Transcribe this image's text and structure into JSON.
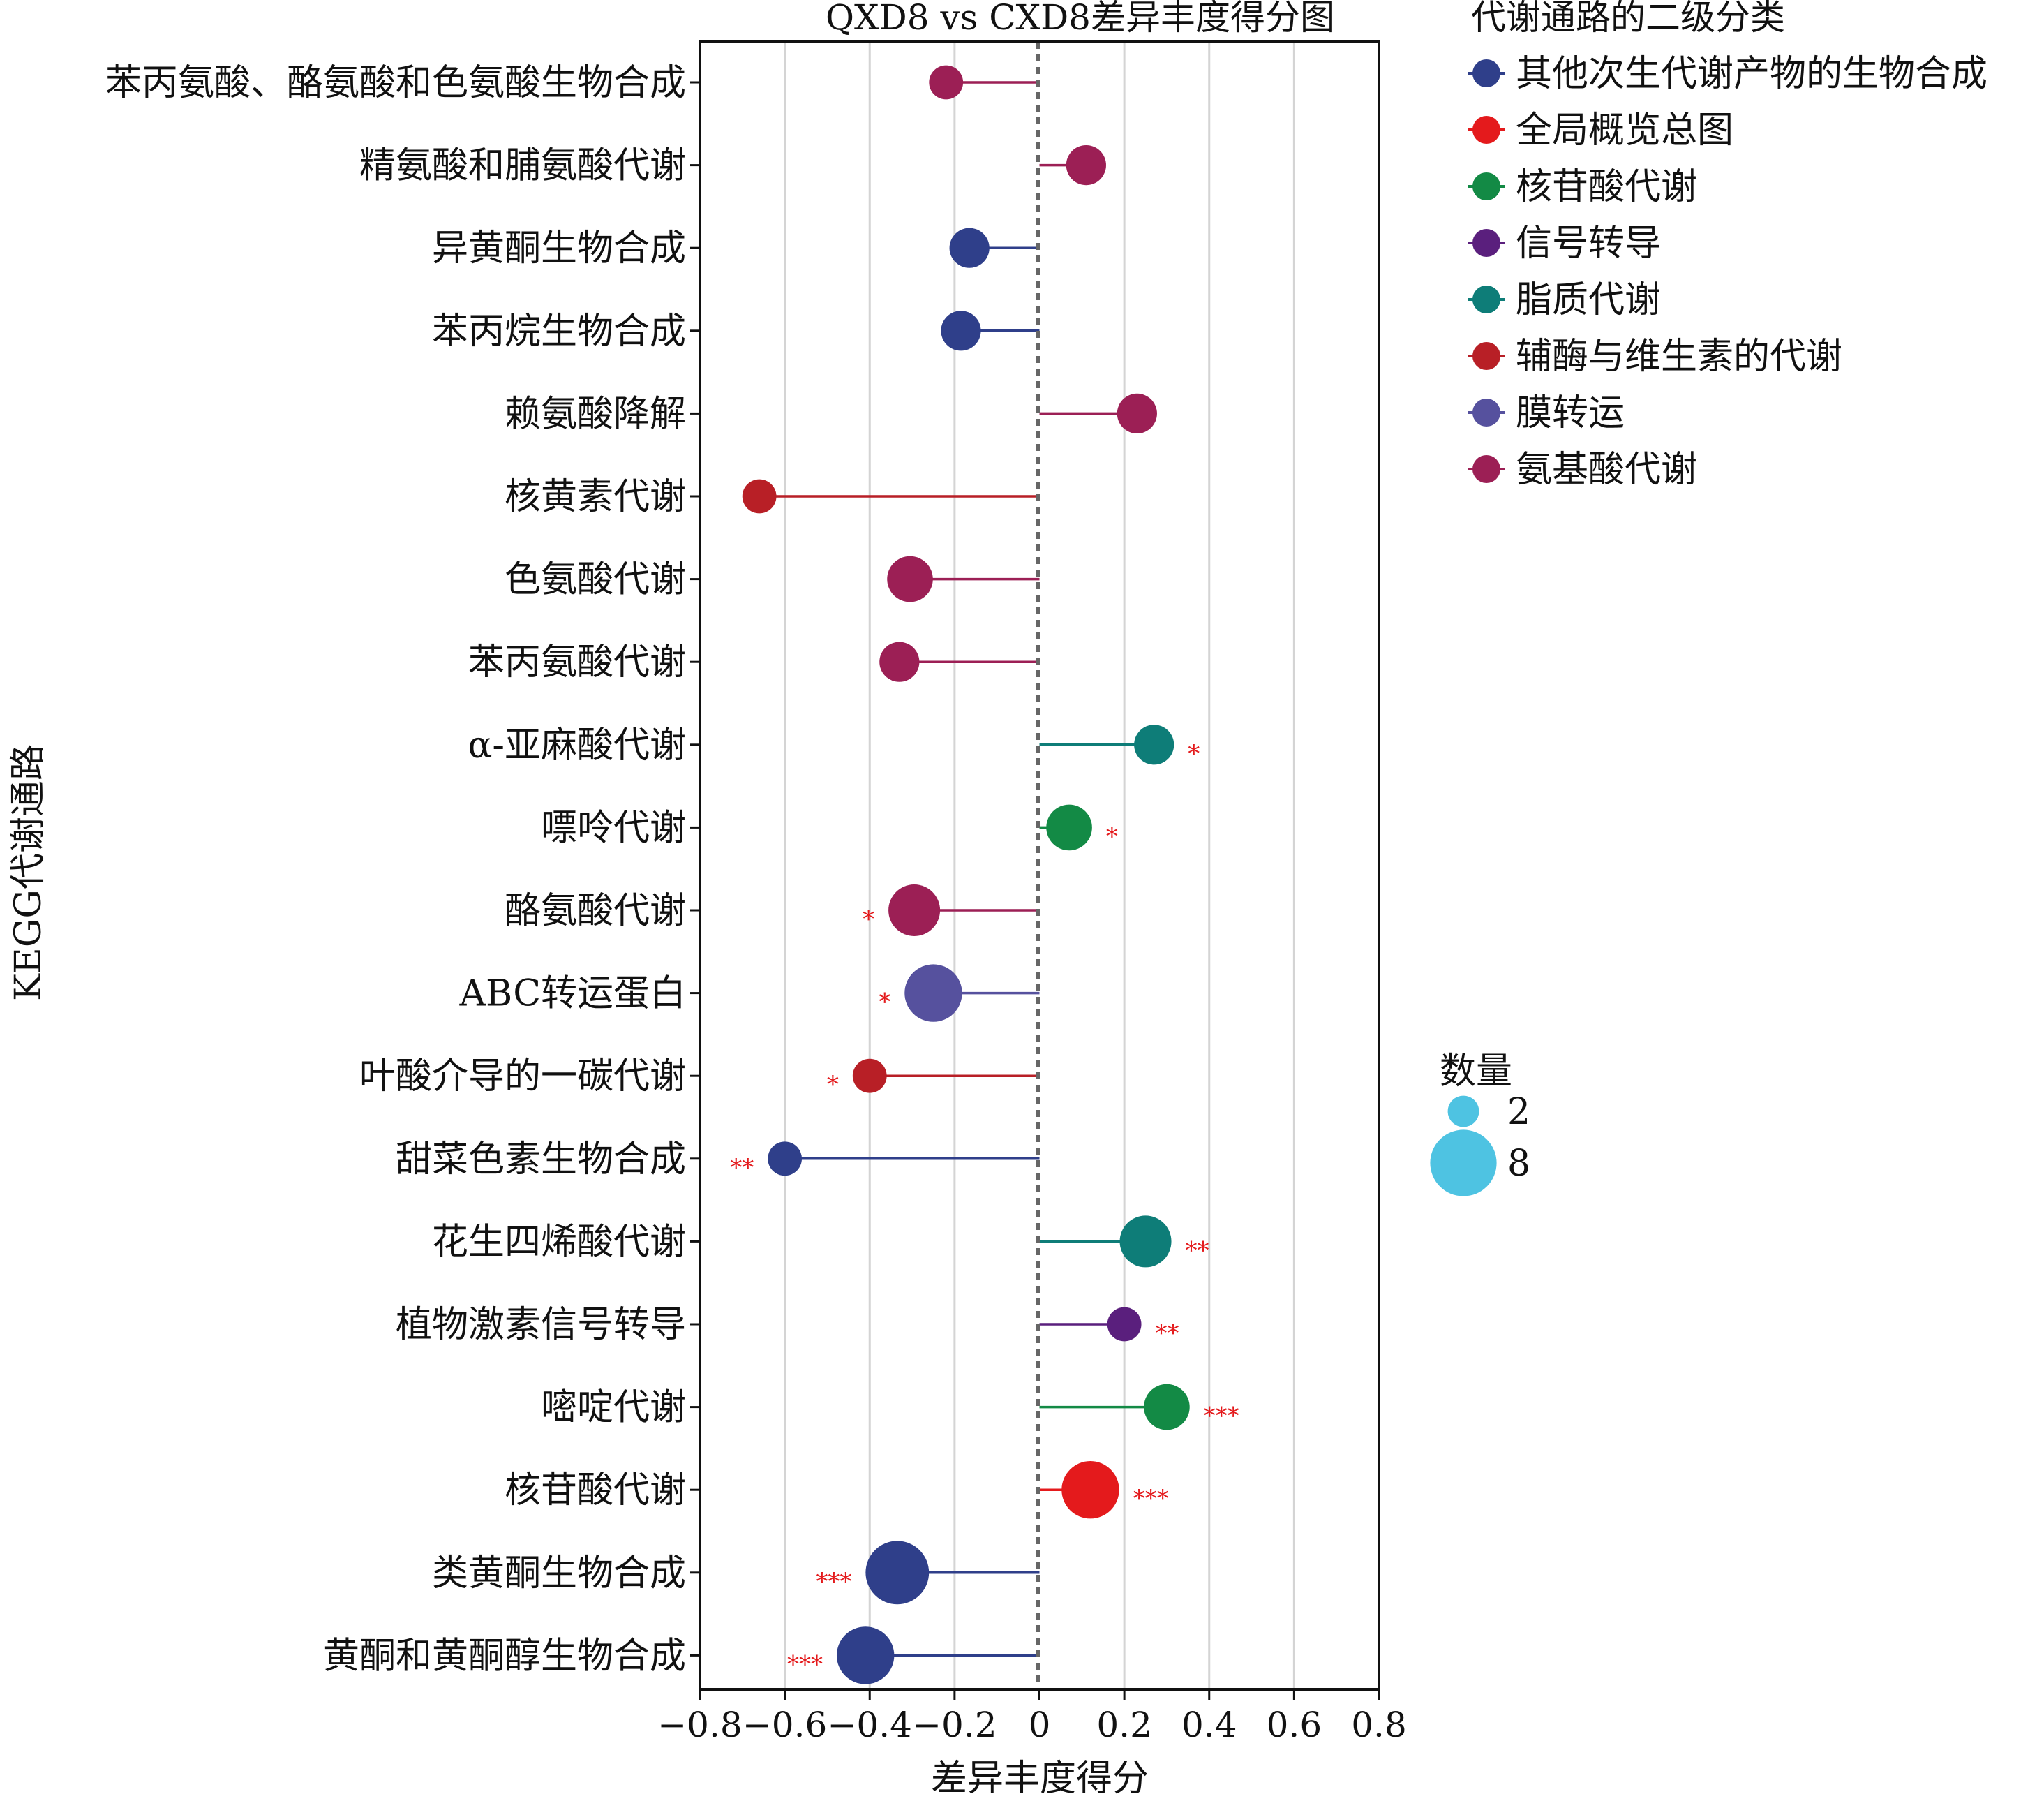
{
  "chart_data": {
    "type": "lollipop",
    "title": "QXD8 vs CXD8差异丰度得分图",
    "xlabel": "差异丰度得分",
    "ylabel": "KEGG代谢通路",
    "xlim": [
      -0.8,
      0.8
    ],
    "xticks": [
      "−0.8",
      "−0.6",
      "−0.4",
      "−0.2",
      "0",
      "0.2",
      "0.4",
      "0.6",
      "0.8"
    ],
    "xtick_values": [
      -0.8,
      -0.6,
      -0.4,
      -0.2,
      0,
      0.2,
      0.4,
      0.6,
      0.8
    ],
    "grid": "vertical",
    "legend_class": {
      "title": "代谢通路的二级分类",
      "items": [
        {
          "label": "其他次生代谢产物的生物合成",
          "color": "#2f3f8a"
        },
        {
          "label": "全局概览总图",
          "color": "#e41a1c"
        },
        {
          "label": "核苷酸代谢",
          "color": "#138a45"
        },
        {
          "label": "信号转导",
          "color": "#5a1f7d"
        },
        {
          "label": "脂质代谢",
          "color": "#0e7d78"
        },
        {
          "label": "辅酶与维生素的代谢",
          "color": "#b81f26"
        },
        {
          "label": "膜转运",
          "color": "#56519e"
        },
        {
          "label": "氨基酸代谢",
          "color": "#9c1f55"
        }
      ]
    },
    "legend_size": {
      "title": "数量",
      "items": [
        {
          "label": "2",
          "value": 2
        },
        {
          "label": "8",
          "value": 8
        }
      ]
    },
    "rows": [
      {
        "label": "苯丙氨酸、酪氨酸和色氨酸生物合成",
        "value": -0.22,
        "category": 7,
        "count": 2,
        "sig": ""
      },
      {
        "label": "精氨酸和脯氨酸代谢",
        "value": 0.11,
        "category": 7,
        "count": 3,
        "sig": ""
      },
      {
        "label": "异黄酮生物合成",
        "value": -0.165,
        "category": 0,
        "count": 3,
        "sig": ""
      },
      {
        "label": "苯丙烷生物合成",
        "value": -0.185,
        "category": 0,
        "count": 3,
        "sig": ""
      },
      {
        "label": "赖氨酸降解",
        "value": 0.23,
        "category": 7,
        "count": 3,
        "sig": ""
      },
      {
        "label": "核黄素代谢",
        "value": -0.66,
        "category": 5,
        "count": 2,
        "sig": ""
      },
      {
        "label": "色氨酸代谢",
        "value": -0.305,
        "category": 7,
        "count": 4,
        "sig": ""
      },
      {
        "label": "苯丙氨酸代谢",
        "value": -0.33,
        "category": 7,
        "count": 3,
        "sig": ""
      },
      {
        "label": "α-亚麻酸代谢",
        "value": 0.27,
        "category": 4,
        "count": 3,
        "sig": "*"
      },
      {
        "label": "嘌呤代谢",
        "value": 0.07,
        "category": 2,
        "count": 4,
        "sig": "*"
      },
      {
        "label": "酪氨酸代谢",
        "value": -0.295,
        "category": 7,
        "count": 5,
        "sig": "*"
      },
      {
        "label": "ABC转运蛋白",
        "value": -0.25,
        "category": 6,
        "count": 6,
        "sig": "*"
      },
      {
        "label": "叶酸介导的一碳代谢",
        "value": -0.4,
        "category": 5,
        "count": 2,
        "sig": "*"
      },
      {
        "label": "甜菜色素生物合成",
        "value": -0.6,
        "category": 0,
        "count": 2,
        "sig": "**"
      },
      {
        "label": "花生四烯酸代谢",
        "value": 0.25,
        "category": 4,
        "count": 5,
        "sig": "**"
      },
      {
        "label": "植物激素信号转导",
        "value": 0.2,
        "category": 3,
        "count": 2,
        "sig": "**"
      },
      {
        "label": "嘧啶代谢",
        "value": 0.3,
        "category": 2,
        "count": 4,
        "sig": "***"
      },
      {
        "label": "核苷酸代谢",
        "value": 0.12,
        "category": 1,
        "count": 6,
        "sig": "***"
      },
      {
        "label": "类黄酮生物合成",
        "value": -0.335,
        "category": 0,
        "count": 7,
        "sig": "***"
      },
      {
        "label": "黄酮和黄酮醇生物合成",
        "value": -0.41,
        "category": 0,
        "count": 6,
        "sig": "***"
      }
    ]
  }
}
